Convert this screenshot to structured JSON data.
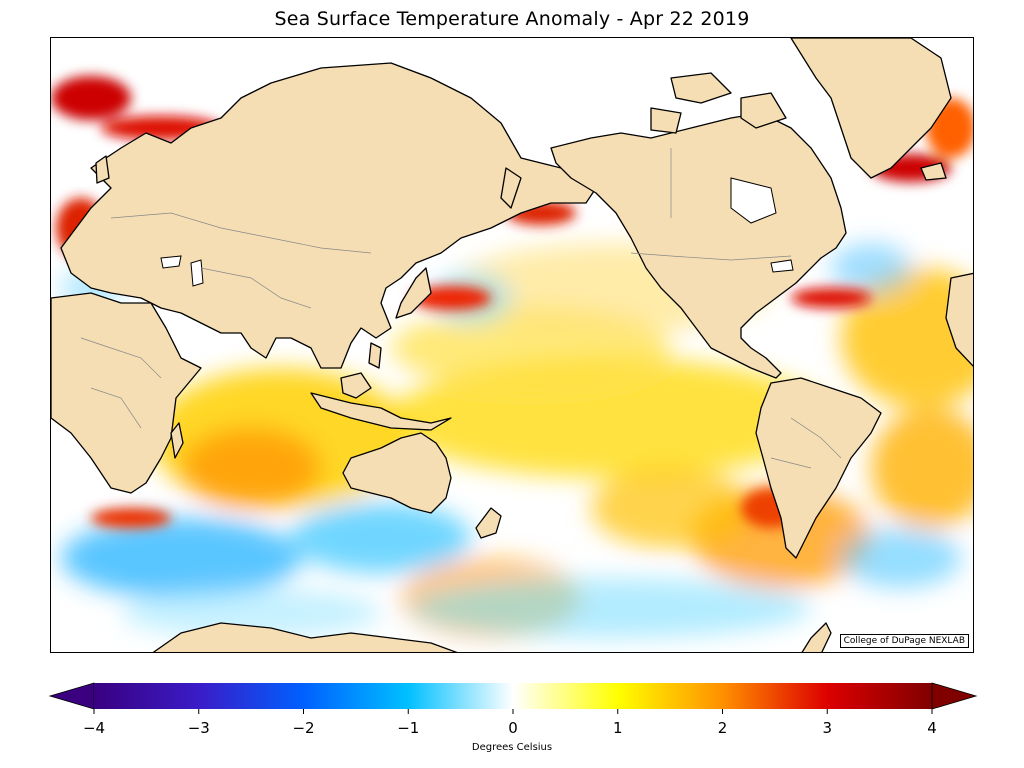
{
  "title": "Sea Surface Temperature Anomaly - Apr 22 2019",
  "credit": "College of DuPage NEXLAB",
  "colorbar": {
    "label": "Degrees Celsius",
    "min": -4,
    "max": 4,
    "ticks": [
      {
        "value": -4,
        "label": "−4"
      },
      {
        "value": -3,
        "label": "−3"
      },
      {
        "value": -2,
        "label": "−2"
      },
      {
        "value": -1,
        "label": "−1"
      },
      {
        "value": 0,
        "label": "0"
      },
      {
        "value": 1,
        "label": "1"
      },
      {
        "value": 2,
        "label": "2"
      },
      {
        "value": 3,
        "label": "3"
      },
      {
        "value": 4,
        "label": "4"
      }
    ],
    "colors": [
      "#3a0080",
      "#0040ff",
      "#00c0ff",
      "#ffffff",
      "#ffff00",
      "#ff8000",
      "#dd0000",
      "#800000"
    ]
  },
  "colors": {
    "land": "#f5deb3",
    "coast": "#000000",
    "ocean_neutral": "#ffffff"
  }
}
